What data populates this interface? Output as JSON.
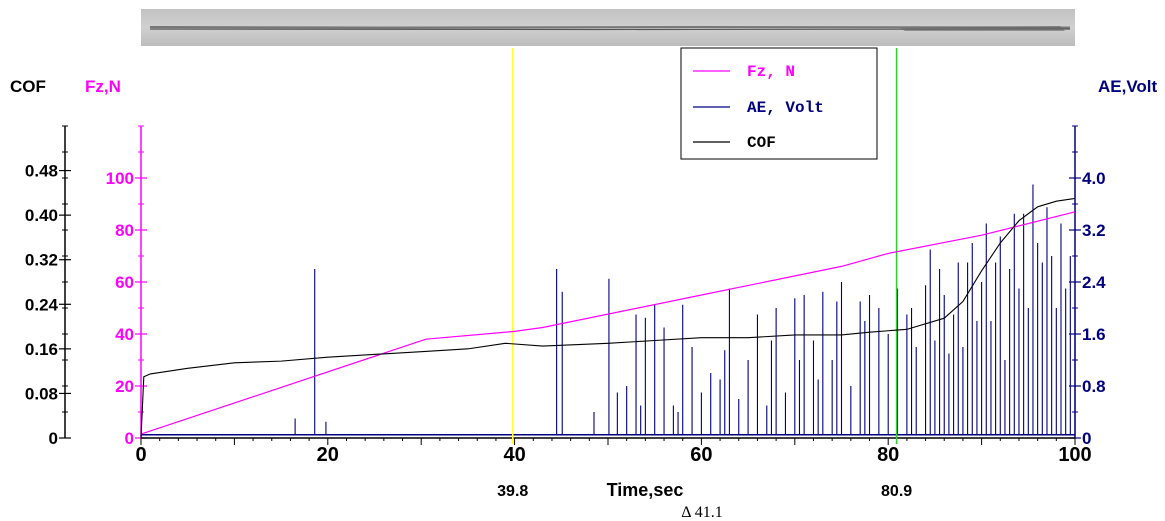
{
  "chart_data": {
    "type": "line",
    "xlabel": "Time,sec",
    "xlim": [
      0,
      100
    ],
    "x_ticks": [
      "0",
      "20",
      "40",
      "60",
      "80",
      "100"
    ],
    "axes": {
      "cof": {
        "label": "COF",
        "color": "#000000",
        "ylim": [
          0,
          0.56
        ],
        "ticks": [
          "0",
          "0.08",
          "0.16",
          "0.24",
          "0.32",
          "0.40",
          "0.48"
        ]
      },
      "fz": {
        "label": "Fz,N",
        "color": "#ff00ff",
        "ylim": [
          0,
          120
        ],
        "ticks": [
          "0",
          "20",
          "40",
          "60",
          "80",
          "100"
        ]
      },
      "ae": {
        "label": "AE,Volt",
        "color": "#00007f",
        "ylim": [
          0,
          4.8
        ],
        "ticks": [
          "0",
          "0.8",
          "1.6",
          "2.4",
          "3.2",
          "4.0"
        ]
      }
    },
    "legend": {
      "position": "top-right",
      "entries": [
        {
          "label": "Fz, N",
          "color": "#ff00ff"
        },
        {
          "label": "AE, Volt",
          "color": "#00007f"
        },
        {
          "label": "COF",
          "color": "#000000"
        }
      ]
    },
    "markers": [
      {
        "x": 39.8,
        "label": "39.8",
        "color": "#ffff33"
      },
      {
        "x": 80.9,
        "label": "80.9",
        "color": "#33cc33"
      }
    ],
    "delta_label": "Δ 41.1",
    "series": [
      {
        "name": "Fz, N",
        "axis": "fz",
        "color": "#ff00ff",
        "x": [
          0,
          30.5,
          40,
          43,
          60,
          75,
          80,
          90,
          100
        ],
        "y": [
          1.5,
          38,
          41,
          42.5,
          55,
          66,
          71,
          78,
          87
        ]
      },
      {
        "name": "COF",
        "axis": "cof",
        "color": "#000000",
        "x": [
          0,
          0.3,
          1,
          5,
          10,
          15,
          20,
          30,
          35,
          39,
          43,
          50,
          55,
          60,
          65,
          70,
          75,
          78,
          82,
          86,
          88,
          90,
          92,
          94,
          96,
          98,
          100
        ],
        "y": [
          0,
          0.11,
          0.115,
          0.125,
          0.135,
          0.138,
          0.145,
          0.155,
          0.16,
          0.17,
          0.165,
          0.17,
          0.175,
          0.18,
          0.18,
          0.185,
          0.185,
          0.19,
          0.195,
          0.215,
          0.245,
          0.3,
          0.35,
          0.39,
          0.415,
          0.425,
          0.43
        ]
      },
      {
        "name": "AE, Volt",
        "axis": "ae",
        "color": "#00007f",
        "baseline": 0.05,
        "spikes_x": [
          16.5,
          18.6,
          19.8,
          44.5,
          45.1,
          48.5,
          50.1,
          51,
          52,
          53,
          53.5,
          54,
          55,
          56,
          57,
          57.5,
          58,
          59,
          60,
          61,
          62,
          62.5,
          63,
          64,
          65,
          66,
          67,
          67.5,
          68,
          69,
          70,
          70.5,
          71,
          72,
          72.5,
          73,
          74,
          74.5,
          75,
          76,
          77,
          77.5,
          78,
          79,
          80,
          81,
          82,
          82.5,
          83,
          84,
          84.5,
          85,
          85.5,
          86,
          86.5,
          87,
          87.5,
          88,
          88.5,
          89,
          89.5,
          90,
          90.5,
          91,
          91.5,
          92,
          92.5,
          93,
          93.5,
          94,
          94.5,
          95,
          95.5,
          96,
          96.5,
          97,
          97.5,
          98,
          98.5,
          99,
          99.5,
          100
        ],
        "spikes_y": [
          0.3,
          2.6,
          0.25,
          2.6,
          2.25,
          0.4,
          2.45,
          0.7,
          0.8,
          1.9,
          0.5,
          1.85,
          2.05,
          1.7,
          0.5,
          0.4,
          2.05,
          1.4,
          0.7,
          1.0,
          0.9,
          1.35,
          2.3,
          0.6,
          1.2,
          1.9,
          0.5,
          1.5,
          2.0,
          0.7,
          2.15,
          1.2,
          2.2,
          1.5,
          0.9,
          2.25,
          1.2,
          2.1,
          2.4,
          0.8,
          2.1,
          1.8,
          2.2,
          2.0,
          1.6,
          2.3,
          1.9,
          2.0,
          1.4,
          2.35,
          2.9,
          1.5,
          2.6,
          2.2,
          1.3,
          1.9,
          2.7,
          1.4,
          2.7,
          3.0,
          1.8,
          2.4,
          3.3,
          1.8,
          2.7,
          3.1,
          1.2,
          2.6,
          3.45,
          2.3,
          3.45,
          2.0,
          3.9,
          3.0,
          2.7,
          3.55,
          2.8,
          2.0,
          3.3,
          2.3,
          2.8,
          2.0
        ]
      }
    ]
  }
}
